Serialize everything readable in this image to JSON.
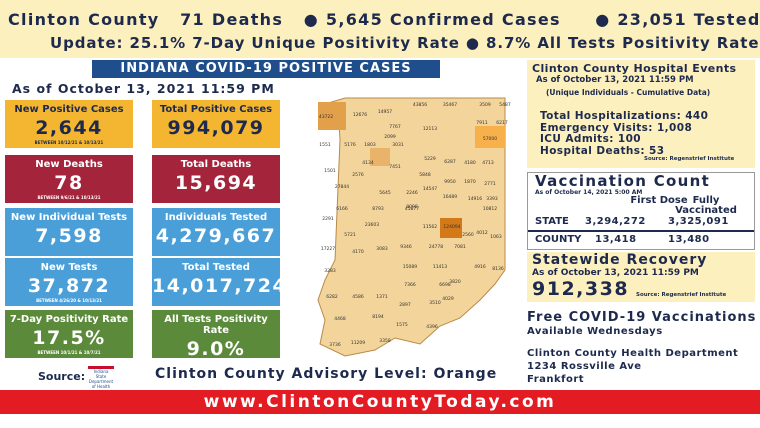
{
  "header": {
    "county": "Clinton County",
    "deaths": "71 Deaths",
    "confirmed": "● 5,645 Confirmed Cases",
    "tested": "● 23,051 Tested",
    "update": "Update: 25.1% 7-Day Unique Positivity Rate ● 8.7% All Tests Positivity Rate"
  },
  "banner": "INDIANA COVID-19 POSITIVE CASES",
  "as_of": "As of October 13, 2021 11:59 PM",
  "state_stats": {
    "new": [
      {
        "label": "New Positive Cases",
        "value": "2,644",
        "note": "BETWEEN 10/12/21 & 10/13/21"
      },
      {
        "label": "New Deaths",
        "value": "78",
        "note": "BETWEEN 9/6/21 & 10/13/21"
      },
      {
        "label": "New Individual Tests",
        "value": "7,598"
      },
      {
        "label": "New Tests",
        "value": "37,872",
        "note": "BETWEEN 4/26/20 & 10/13/21"
      },
      {
        "label": "7-Day Positivity Rate",
        "value": "17.5%",
        "note": "BETWEEN 10/1/21 & 10/7/21"
      }
    ],
    "total": [
      {
        "label": "Total Positive Cases",
        "value": "994,079"
      },
      {
        "label": "Total Deaths",
        "value": "15,694"
      },
      {
        "label": "Individuals Tested",
        "value": "4,279,667"
      },
      {
        "label": "Total Tested",
        "value": "14,017,724"
      },
      {
        "label": "All Tests Positivity Rate",
        "value": "9.0%",
        "note": "BETWEEN 10/1/21 & 10/7/21"
      }
    ]
  },
  "source": {
    "label": "Source:",
    "logo": "Indiana State Department of Health"
  },
  "advisory": "Clinton County Advisory Level: Orange",
  "map": {
    "county_counts": [
      43722,
      12676,
      14957,
      43856,
      35467,
      3509,
      5487,
      7911,
      6217,
      7767,
      2099,
      12113,
      1551,
      5176,
      1803,
      3031,
      57000,
      5229,
      6287,
      4180,
      4713,
      4134,
      7451,
      5848,
      9950,
      1870,
      2771,
      1501,
      2576,
      14547,
      27844,
      5645,
      2246,
      16489,
      14916,
      3393,
      8098,
      6166,
      8793,
      45877,
      10812,
      2291,
      23603,
      124094,
      11562,
      2560,
      4012,
      1063,
      5721,
      17227,
      4170,
      3083,
      9346,
      24778,
      7081,
      15089,
      11413,
      3283,
      4916,
      8136,
      3820,
      6282,
      4586,
      1371,
      7366,
      6698,
      4029,
      2897,
      3510,
      4468,
      8194,
      1575,
      4396,
      3736,
      11209,
      3358
    ]
  },
  "hospital": {
    "title": "Clinton County Hospital Events",
    "as_of": "As of October 13, 2021 11:59 PM",
    "note": "(Unique Individuals - Cumulative Data)",
    "lines": [
      "Total Hospitalizations: 440",
      "Emergency Visits: 1,008",
      "ICU Admits: 100",
      "Hospital Deaths: 53"
    ],
    "source": "Source: Regenstrief Institute"
  },
  "vaccination": {
    "title": "Vaccination Count",
    "as_of": "As of October 14, 2021 5:00 AM",
    "columns": [
      "First Dose",
      "Fully Vaccinated"
    ],
    "rows": [
      [
        "STATE",
        "3,294,272",
        "3,325,091"
      ],
      [
        "COUNTY",
        "13,418",
        "13,480"
      ]
    ]
  },
  "recovery": {
    "title": "Statewide Recovery",
    "as_of": "As of October 13, 2021 11:59 PM",
    "value": "912,338",
    "source": "Source: Regenstrief Institute"
  },
  "free_vaccinations": {
    "title": "Free COVID-19 Vaccinations",
    "subtitle": "Available Wednesdays",
    "address": [
      "Clinton County Health Department",
      "1234 Rossville Ave",
      "Frankfort"
    ]
  },
  "footer": "www.ClintonCountyToday.com"
}
